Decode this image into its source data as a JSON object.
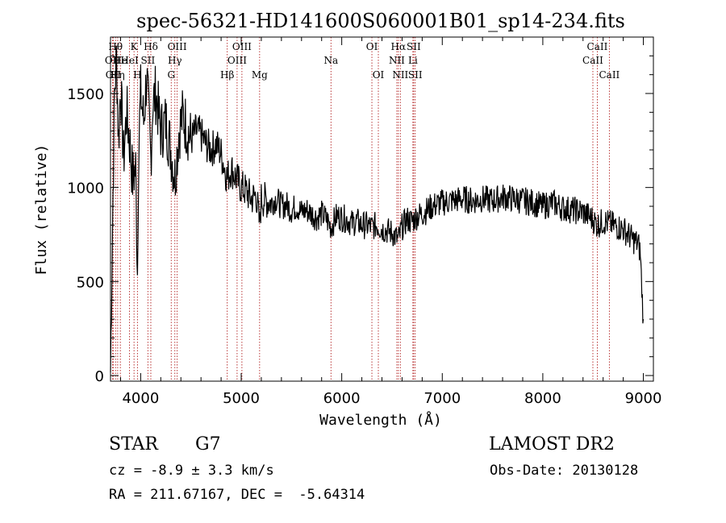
{
  "chart_data": {
    "type": "line",
    "title": "spec-56321-HD141600S060001B01_sp14-234.fits",
    "xlabel": "Wavelength (Å)",
    "ylabel": "Flux (relative)",
    "xlim": [
      3700,
      9100
    ],
    "ylim": [
      -30,
      1800
    ],
    "xticks": [
      "4000",
      "5000",
      "6000",
      "7000",
      "8000",
      "9000"
    ],
    "yticks": [
      "0",
      "500",
      "1000",
      "1500"
    ],
    "series": [
      {
        "x": [
          3700,
          3720,
          3740,
          3760,
          3780,
          3800,
          3830,
          3860,
          3890,
          3920,
          3950,
          3968,
          3980,
          4000,
          4030,
          4060,
          4101,
          4120,
          4150,
          4200,
          4250,
          4300,
          4340,
          4380,
          4420,
          4460,
          4500,
          4550,
          4600,
          4650,
          4700,
          4750,
          4800,
          4861,
          4900,
          4950,
          5000,
          5050,
          5100,
          5150,
          5183,
          5200,
          5250,
          5300,
          5350,
          5400,
          5450,
          5500,
          5550,
          5600,
          5650,
          5700,
          5750,
          5800,
          5850,
          5893,
          5950,
          6000,
          6050,
          6100,
          6150,
          6200,
          6250,
          6300,
          6350,
          6400,
          6450,
          6500,
          6563,
          6600,
          6650,
          6700,
          6750,
          6800,
          6850,
          6900,
          6950,
          7000,
          7100,
          7200,
          7300,
          7400,
          7500,
          7600,
          7700,
          7800,
          7900,
          8000,
          8100,
          8200,
          8300,
          8400,
          8500,
          8542,
          8600,
          8662,
          8700,
          8750,
          8800,
          8850,
          8900,
          8950,
          8970,
          8990,
          9000
        ],
        "y": [
          20,
          800,
          1500,
          1700,
          1250,
          1550,
          1150,
          1400,
          1250,
          1050,
          1100,
          550,
          1200,
          1500,
          1350,
          1600,
          1150,
          1450,
          1500,
          1300,
          1350,
          1200,
          1050,
          1300,
          1380,
          1320,
          1250,
          1300,
          1280,
          1230,
          1200,
          1230,
          1180,
          1050,
          1100,
          1050,
          1000,
          980,
          940,
          960,
          800,
          940,
          930,
          920,
          940,
          900,
          910,
          880,
          900,
          870,
          880,
          860,
          840,
          860,
          830,
          790,
          850,
          840,
          830,
          810,
          820,
          800,
          800,
          790,
          800,
          780,
          770,
          760,
          720,
          790,
          830,
          820,
          850,
          860,
          880,
          900,
          910,
          920,
          930,
          940,
          930,
          940,
          930,
          950,
          940,
          930,
          920,
          900,
          920,
          890,
          880,
          870,
          830,
          800,
          820,
          810,
          800,
          790,
          780,
          750,
          720,
          700,
          650,
          400,
          300
        ]
      }
    ],
    "lines": [
      {
        "x": 3720,
        "label": "OII",
        "row": 2
      },
      {
        "x": 3727,
        "label": "OII",
        "row": 3
      },
      {
        "x": 3750,
        "label": "Hθ",
        "row": 1
      },
      {
        "x": 3771,
        "label": "Hη",
        "row": 3
      },
      {
        "x": 3798,
        "label": "He",
        "row": 2
      },
      {
        "x": 3889,
        "label": "HeI",
        "row": 2
      },
      {
        "x": 3934,
        "label": "K",
        "row": 1
      },
      {
        "x": 3968,
        "label": "H",
        "row": 3
      },
      {
        "x": 4072,
        "label": "SII",
        "row": 2
      },
      {
        "x": 4101,
        "label": "Hδ",
        "row": 1
      },
      {
        "x": 4304,
        "label": "G",
        "row": 3
      },
      {
        "x": 4340,
        "label": "Hγ",
        "row": 2
      },
      {
        "x": 4363,
        "label": "OIII",
        "row": 1
      },
      {
        "x": 4861,
        "label": "Hβ",
        "row": 3
      },
      {
        "x": 4959,
        "label": "OIII",
        "row": 2
      },
      {
        "x": 5007,
        "label": "OIII",
        "row": 1
      },
      {
        "x": 5183,
        "label": "Mg",
        "row": 3
      },
      {
        "x": 5893,
        "label": "Na",
        "row": 2
      },
      {
        "x": 6300,
        "label": "OI",
        "row": 1
      },
      {
        "x": 6364,
        "label": "OI",
        "row": 3
      },
      {
        "x": 6548,
        "label": "NII",
        "row": 2
      },
      {
        "x": 6563,
        "label": "Hα",
        "row": 1
      },
      {
        "x": 6583,
        "label": "NII",
        "row": 3
      },
      {
        "x": 6708,
        "label": "Li",
        "row": 2
      },
      {
        "x": 6716,
        "label": "SII",
        "row": 1
      },
      {
        "x": 6731,
        "label": "SII",
        "row": 3
      },
      {
        "x": 8498,
        "label": "CaII",
        "row": 2
      },
      {
        "x": 8542,
        "label": "CaII",
        "row": 1
      },
      {
        "x": 8662,
        "label": "CaII",
        "row": 3
      }
    ],
    "grid": false,
    "legend": "none"
  },
  "info": {
    "object_type": "STAR",
    "subclass": "G7",
    "survey": "LAMOST DR2",
    "redshift": "cz = -8.9 ± 3.3 km/s",
    "obs_date": "Obs-Date: 20130128",
    "coords": "RA = 211.67167, DEC =  -5.64314"
  },
  "colors": {
    "spectrum": "#000000",
    "line_markers": "#b22222",
    "axes": "#000000"
  }
}
